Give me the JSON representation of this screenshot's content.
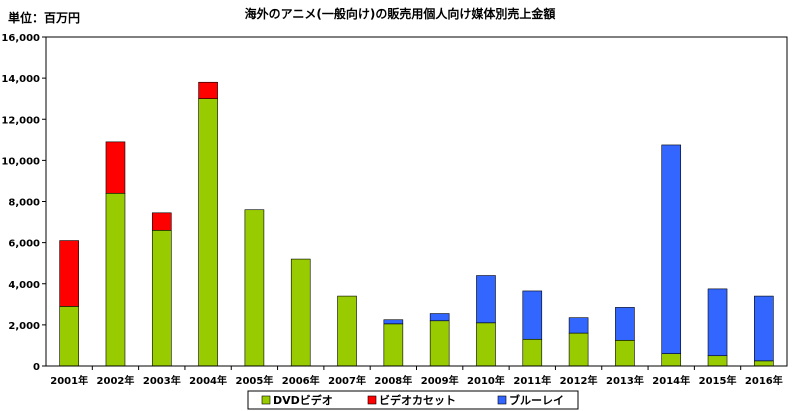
{
  "chart_data": {
    "type": "bar",
    "stacked": true,
    "title": "海外のアニメ(一般向け)の販売用個人向け媒体別売上金額",
    "unit_label": "単位：百万円",
    "categories": [
      "2001年",
      "2002年",
      "2003年",
      "2004年",
      "2005年",
      "2006年",
      "2007年",
      "2008年",
      "2009年",
      "2010年",
      "2011年",
      "2012年",
      "2013年",
      "2014年",
      "2015年",
      "2016年"
    ],
    "series": [
      {
        "name": "DVDビデオ",
        "color": "#99cc00",
        "values": [
          2900,
          8400,
          6600,
          13000,
          7600,
          5200,
          3400,
          2050,
          2200,
          2100,
          1300,
          1600,
          1250,
          600,
          500,
          250
        ]
      },
      {
        "name": "ビデオカセット",
        "color": "#ff0000",
        "values": [
          3200,
          2500,
          850,
          800,
          0,
          0,
          0,
          0,
          0,
          0,
          0,
          0,
          0,
          0,
          0,
          0
        ]
      },
      {
        "name": "ブルーレイ",
        "color": "#3366ff",
        "values": [
          0,
          0,
          0,
          0,
          0,
          0,
          0,
          200,
          350,
          2300,
          2350,
          750,
          1600,
          10150,
          3250,
          3150
        ]
      }
    ],
    "ylim": [
      0,
      16000
    ],
    "yticks": [
      "0",
      "2,000",
      "4,000",
      "6,000",
      "8,000",
      "10,000",
      "12,000",
      "14,000",
      "16,000"
    ],
    "grid": false,
    "legend_position": "bottom"
  }
}
